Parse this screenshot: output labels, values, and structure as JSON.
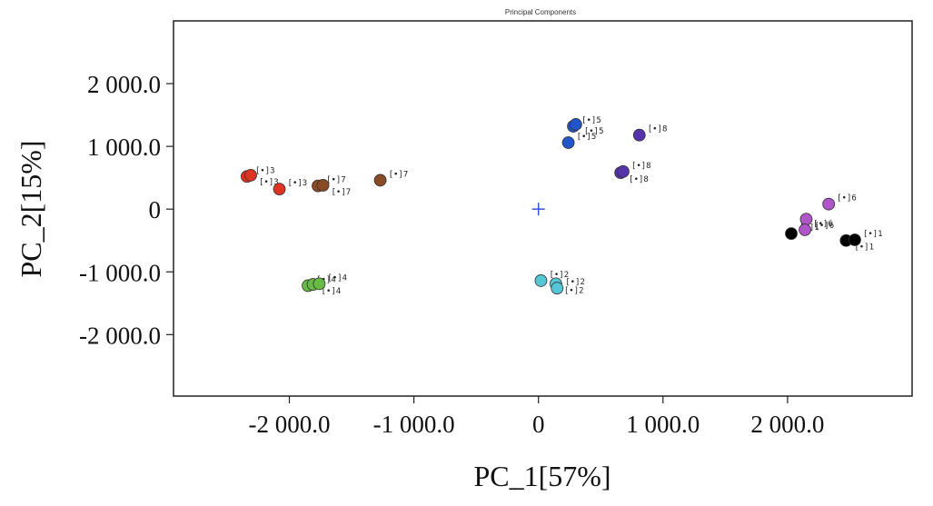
{
  "chart_data": {
    "type": "scatter",
    "title": "Principal Components",
    "xlabel": "PC_1[57%]",
    "ylabel": "PC_2[15%]",
    "xlim": [
      -2930,
      3000
    ],
    "ylim": [
      -2980,
      3000
    ],
    "x_ticks": [
      {
        "value": -2000,
        "label": "-2 000.0"
      },
      {
        "value": -1000,
        "label": "-1 000.0"
      },
      {
        "value": 0,
        "label": "0"
      },
      {
        "value": 1000,
        "label": "1 000.0"
      },
      {
        "value": 2000,
        "label": "2 000.0"
      }
    ],
    "y_ticks": [
      {
        "value": 2000,
        "label": "2 000.0"
      },
      {
        "value": 1000,
        "label": "1 000.0"
      },
      {
        "value": 0,
        "label": "0"
      },
      {
        "value": -1000,
        "label": "-1 000.0"
      },
      {
        "value": -2000,
        "label": "-2 000.0"
      }
    ],
    "origin_marker": {
      "x": 0,
      "y": 0,
      "symbol": "+",
      "color": "#3355dd"
    },
    "grid": false,
    "groups": [
      {
        "group": "1",
        "color": "#000000",
        "points": [
          {
            "x": 2030,
            "y": -390,
            "label": "[•]1"
          },
          {
            "x": 2470,
            "y": -500,
            "label": "[•]1"
          },
          {
            "x": 2540,
            "y": -490,
            "label": "[•]1"
          }
        ]
      },
      {
        "group": "2",
        "color": "#55c6d6",
        "points": [
          {
            "x": 20,
            "y": -1140,
            "label": "[•]2"
          },
          {
            "x": 140,
            "y": -1190,
            "label": "[•]2"
          },
          {
            "x": 150,
            "y": -1260,
            "label": "[•]2"
          }
        ]
      },
      {
        "group": "3",
        "color": "#dd3322",
        "points": [
          {
            "x": -2340,
            "y": 520,
            "label": "[•]3"
          },
          {
            "x": -2310,
            "y": 540,
            "label": "[•]3"
          },
          {
            "x": -2080,
            "y": 320,
            "label": "[•]3"
          }
        ]
      },
      {
        "group": "4",
        "color": "#66bb44",
        "points": [
          {
            "x": -1850,
            "y": -1220,
            "label": "[•]4"
          },
          {
            "x": -1810,
            "y": -1200,
            "label": "[•]4"
          },
          {
            "x": -1760,
            "y": -1190,
            "label": "[•]4"
          }
        ]
      },
      {
        "group": "5",
        "color": "#2255cc",
        "points": [
          {
            "x": 280,
            "y": 1320,
            "label": "[•]5"
          },
          {
            "x": 300,
            "y": 1350,
            "label": "[•]5"
          },
          {
            "x": 240,
            "y": 1060,
            "label": "[•]5"
          }
        ]
      },
      {
        "group": "6",
        "color": "#b055c8",
        "points": [
          {
            "x": 2330,
            "y": 80,
            "label": "[•]6"
          },
          {
            "x": 2150,
            "y": -160,
            "label": "[•]6"
          },
          {
            "x": 2140,
            "y": -330,
            "label": "[•]6"
          }
        ]
      },
      {
        "group": "7",
        "color": "#8a4a24",
        "points": [
          {
            "x": -1770,
            "y": 370,
            "label": "[•]7"
          },
          {
            "x": -1730,
            "y": 380,
            "label": "[•]7"
          },
          {
            "x": -1270,
            "y": 460,
            "label": "[•]7"
          }
        ]
      },
      {
        "group": "8",
        "color": "#5533aa",
        "points": [
          {
            "x": 810,
            "y": 1180,
            "label": "[•]8"
          },
          {
            "x": 660,
            "y": 580,
            "label": "[•]8"
          },
          {
            "x": 680,
            "y": 600,
            "label": "[•]8"
          }
        ]
      }
    ]
  }
}
